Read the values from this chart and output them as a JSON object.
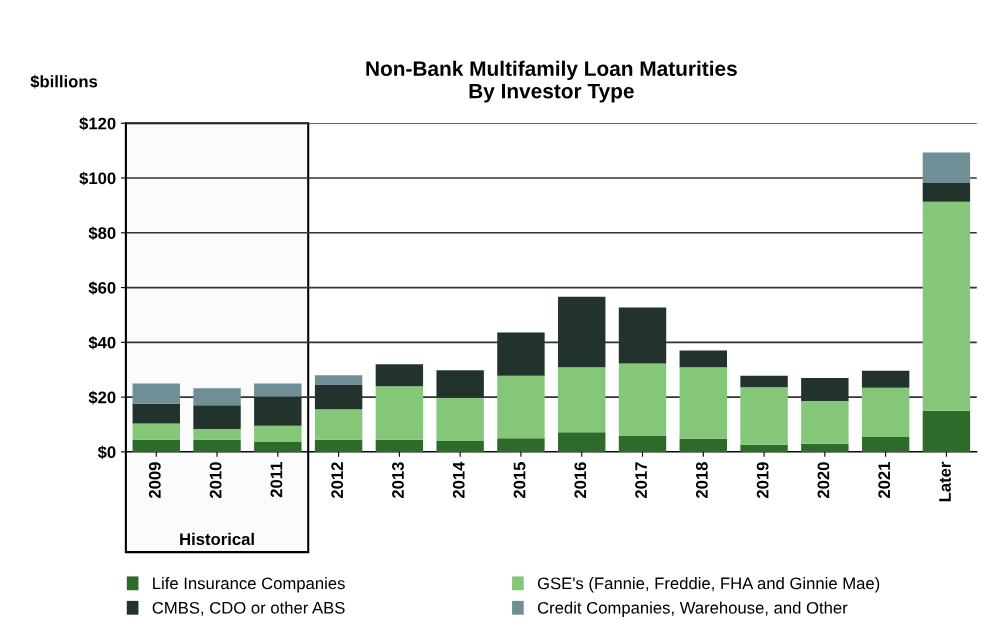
{
  "chart_data": {
    "type": "bar",
    "title": "Non-Bank Multifamily Loan Maturities\nBy Investor Type",
    "ylabel": "$billions",
    "categories": [
      "2009",
      "2010",
      "2011",
      "2012",
      "2013",
      "2014",
      "2015",
      "2016",
      "2017",
      "2018",
      "2019",
      "2020",
      "2021",
      "Later"
    ],
    "stacked": true,
    "series": [
      {
        "name": "Life Insurance Companies",
        "color": "#2e6b2a",
        "values": [
          4.4,
          4.4,
          3.6,
          4.4,
          4.4,
          4.0,
          5.0,
          7.2,
          6.0,
          4.8,
          2.6,
          3.0,
          5.4,
          15.0
        ]
      },
      {
        "name": "GSE's (Fannie, Freddie, FHA and Ginnie Mae)",
        "color": "#84c779",
        "values": [
          6.0,
          4.0,
          5.9,
          11.2,
          19.6,
          15.8,
          22.8,
          23.7,
          26.3,
          26.1,
          21.0,
          15.6,
          18.0,
          76.3
        ]
      },
      {
        "name": "CMBS, CDO or other ABS",
        "color": "#22332e",
        "values": [
          7.2,
          8.6,
          10.7,
          9.0,
          8.0,
          10.0,
          15.8,
          25.7,
          20.4,
          6.1,
          4.2,
          8.4,
          6.2,
          6.9
        ]
      },
      {
        "name": "Credit Companies, Warehouse, and Other",
        "color": "#6f8e96",
        "values": [
          7.4,
          6.2,
          4.8,
          3.4,
          null,
          null,
          null,
          null,
          null,
          null,
          null,
          null,
          null,
          11.1
        ]
      }
    ],
    "ylim": [
      0,
      120
    ],
    "yticks": [
      {
        "value": 0,
        "label": "$0"
      },
      {
        "value": 20,
        "label": "$20"
      },
      {
        "value": 40,
        "label": "$40"
      },
      {
        "value": 60,
        "label": "$60"
      },
      {
        "value": 80,
        "label": "$80"
      },
      {
        "value": 100,
        "label": "$100"
      },
      {
        "value": 120,
        "label": "$120"
      }
    ],
    "bands": [
      {
        "axis": "x",
        "from": "2009",
        "to": "2011",
        "label": "Historical",
        "color": "#000000"
      }
    ],
    "grid": "y",
    "legend": "bottom"
  }
}
